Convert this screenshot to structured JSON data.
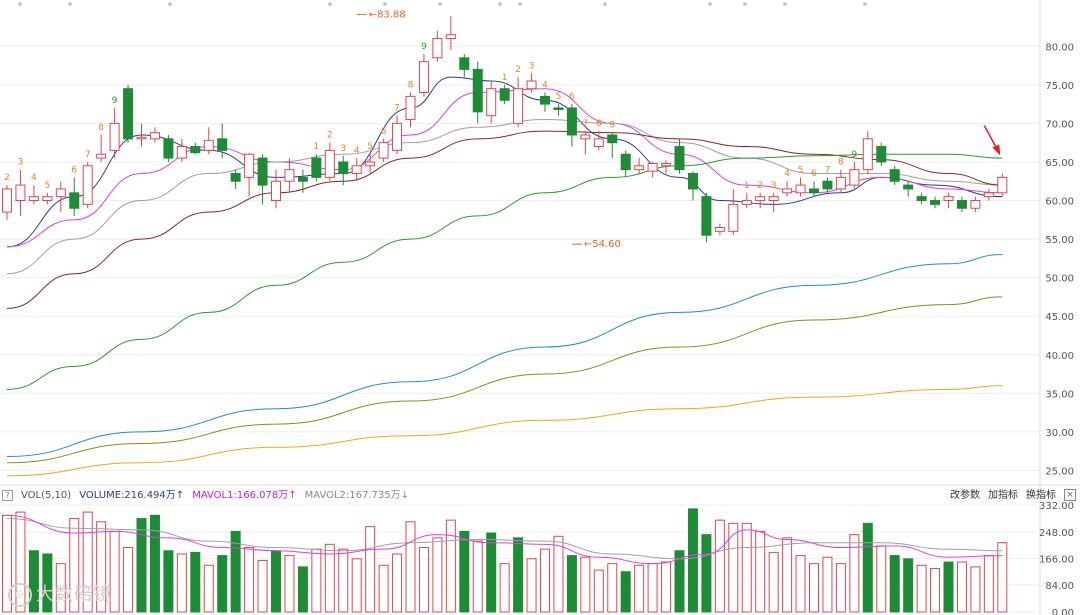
{
  "colors": {
    "up": "#e0474c",
    "down": "#1e8b36",
    "ma5": "#2b3a9a",
    "ma10": "#e040e0",
    "ma20": "#a0a0a0",
    "ma30": "#8b2525",
    "ma60": "#2d9a2d",
    "ma120": "#1f8fd0",
    "ma250": "#8f8a1a",
    "ma500": "#f2a51a",
    "td_up": "#e8841a",
    "td_down": "#2aa02a",
    "annotation": "#e8641a",
    "vol_ma5": "#e040e0",
    "vol_ma10": "#a0a0a0"
  },
  "header": {
    "help_icon": "?",
    "indicator": "VOL(5,10)",
    "volume": "VOLUME:216.494万",
    "volume_arrow": "↑",
    "mavol1": "MAVOL1:166.078万",
    "mavol1_arrow": "↑",
    "mavol2": "MAVOL2:167.735万",
    "mavol2_arrow": "↓",
    "btn_params": "改参数",
    "btn_add": "加指标",
    "btn_switch": "换指标",
    "btn_close": "×"
  },
  "watermark": "大数碚镜",
  "chart_data": {
    "type": "candlestick",
    "price_axis": {
      "ticks": [
        "25.00",
        "30.00",
        "35.00",
        "40.00",
        "45.00",
        "50.00",
        "55.00",
        "60.00",
        "65.00",
        "70.00",
        "75.00",
        "80.00"
      ],
      "range": [
        23.5,
        86
      ]
    },
    "volume_axis": {
      "ticks": [
        "0.00",
        "84.00",
        "166.00",
        "248.00",
        "332.00"
      ],
      "range": [
        0,
        332
      ]
    },
    "annotations": [
      {
        "label": "83.88",
        "type": "high",
        "index": 26,
        "value": 83.88
      },
      {
        "label": "54.60",
        "type": "low",
        "index": 42,
        "value": 54.6
      }
    ],
    "top_markers": [
      "*",
      "*",
      "*",
      "*",
      "*",
      "*",
      "*",
      "*",
      "*",
      "*",
      "*",
      "*",
      "*"
    ],
    "candles": [
      [
        58.5,
        61.5,
        57.5,
        62
      ],
      [
        60,
        62,
        58,
        64
      ],
      [
        60,
        60.5,
        59.5,
        62
      ],
      [
        60,
        60.5,
        59.5,
        61
      ],
      [
        60.5,
        61.5,
        58.5,
        62.5
      ],
      [
        61,
        59,
        58,
        63
      ],
      [
        59.5,
        64.5,
        59,
        65
      ],
      [
        65.5,
        66,
        65,
        68.5
      ],
      [
        66.5,
        70,
        65.5,
        72
      ],
      [
        74.5,
        68,
        67.5,
        75
      ],
      [
        68,
        68.2,
        67,
        70
      ],
      [
        68,
        68.8,
        67.5,
        69.5
      ],
      [
        68,
        65.5,
        65,
        68.5
      ],
      [
        65.5,
        67,
        65,
        68
      ],
      [
        67,
        66.2,
        66,
        67.5
      ],
      [
        66.5,
        67.8,
        66,
        69.5
      ],
      [
        68,
        66.5,
        65.5,
        70
      ],
      [
        63.5,
        62.5,
        61.5,
        64
      ],
      [
        63,
        66,
        60.5,
        66.2
      ],
      [
        65.5,
        62,
        59.5,
        66
      ],
      [
        60,
        62.5,
        59,
        64
      ],
      [
        62.5,
        64,
        61,
        65.5
      ],
      [
        63,
        62.5,
        61,
        64
      ],
      [
        65.5,
        63,
        62.5,
        66
      ],
      [
        63,
        66.5,
        62.5,
        67.5
      ],
      [
        65,
        63.5,
        62,
        65.8
      ],
      [
        63.5,
        64.5,
        62.5,
        65.5
      ],
      [
        64.5,
        65,
        63.5,
        66
      ],
      [
        65.5,
        67.5,
        65,
        68
      ],
      [
        66.5,
        70,
        66,
        71
      ],
      [
        70.5,
        73.5,
        69.5,
        74
      ],
      [
        74,
        78,
        73.5,
        79
      ],
      [
        78.5,
        81,
        78,
        82
      ],
      [
        81,
        81.5,
        79.5,
        83.88
      ],
      [
        78.5,
        77,
        76,
        79
      ],
      [
        77,
        71.5,
        70,
        78
      ],
      [
        71,
        74.5,
        70,
        75.5
      ],
      [
        74.5,
        73,
        72.5,
        75
      ],
      [
        70,
        74.5,
        69.5,
        76
      ],
      [
        74.5,
        75.5,
        74,
        76.5
      ],
      [
        73.5,
        72.5,
        71.5,
        74
      ],
      [
        72,
        71.8,
        71,
        72.5
      ],
      [
        72,
        68.5,
        67,
        72.5
      ],
      [
        68,
        68.5,
        66,
        69
      ],
      [
        67,
        68,
        66.5,
        69
      ],
      [
        68.5,
        67.5,
        65.5,
        68.8
      ],
      [
        66,
        64,
        63,
        66.5
      ],
      [
        64,
        64.5,
        63.5,
        65.5
      ],
      [
        63.8,
        64.8,
        63,
        65
      ],
      [
        64.5,
        64.8,
        63.5,
        65.2
      ],
      [
        67,
        64,
        63.5,
        68
      ],
      [
        63.5,
        61.5,
        60,
        63.8
      ],
      [
        60.5,
        55.5,
        54.6,
        61
      ],
      [
        56,
        56.5,
        55.5,
        57
      ],
      [
        56,
        59.5,
        55.5,
        61.5
      ]
    ],
    "candles_tail": [
      [
        59.5,
        60,
        59,
        61
      ],
      [
        60,
        60.5,
        59,
        61
      ],
      [
        60,
        60.5,
        58.5,
        61
      ],
      [
        61,
        61.5,
        60.5,
        62.5
      ],
      [
        61,
        62,
        60.5,
        63
      ],
      [
        61.5,
        61,
        60.5,
        62.5
      ],
      [
        62.5,
        61.5,
        61,
        63
      ],
      [
        61.5,
        63,
        61,
        64
      ],
      [
        62,
        64,
        61.5,
        65
      ],
      [
        64,
        68,
        63.5,
        69
      ],
      [
        67,
        65,
        64.5,
        67.5
      ],
      [
        64,
        62.5,
        62,
        64.5
      ],
      [
        62,
        61.5,
        60.5,
        62.5
      ],
      [
        60.5,
        60,
        59.5,
        61
      ],
      [
        60,
        59.5,
        59,
        60.5
      ],
      [
        60,
        60.5,
        59,
        61
      ],
      [
        60,
        59,
        58.5,
        60.5
      ],
      [
        59,
        60,
        58.5,
        60.5
      ],
      [
        60.5,
        61,
        60,
        61.5
      ],
      [
        61,
        63,
        60.5,
        63.5
      ]
    ],
    "volumes_up": [
      0,
      1,
      4,
      5,
      6,
      7,
      8,
      9,
      13,
      15,
      18,
      19,
      21,
      23,
      24,
      25,
      26,
      27,
      28,
      29,
      30,
      31,
      32,
      33,
      35,
      37,
      39,
      40,
      41,
      43,
      44,
      45,
      47,
      48,
      49,
      53,
      54,
      55,
      56,
      57,
      58,
      59,
      60,
      61,
      62,
      63,
      65,
      68,
      69,
      71,
      72,
      73,
      74
    ],
    "volumes": [
      300,
      310,
      190,
      180,
      150,
      290,
      310,
      280,
      250,
      200,
      290,
      300,
      190,
      180,
      185,
      145,
      175,
      250,
      200,
      160,
      190,
      175,
      140,
      195,
      210,
      195,
      165,
      265,
      145,
      180,
      280,
      200,
      230,
      285,
      250,
      220,
      245,
      150,
      230,
      165,
      195,
      235,
      175,
      170,
      130,
      150,
      125,
      145,
      150,
      155,
      190,
      320,
      240,
      285,
      275,
      275,
      250,
      185,
      230,
      175,
      150,
      170,
      150,
      240,
      275,
      205,
      175,
      165,
      145,
      135,
      155,
      155,
      140,
      175,
      215
    ],
    "td_labels": [
      {
        "i": 0,
        "t": "2",
        "c": "up"
      },
      {
        "i": 1,
        "t": "3",
        "c": "up"
      },
      {
        "i": 2,
        "t": "4",
        "c": "up"
      },
      {
        "i": 3,
        "t": "5",
        "c": "up"
      },
      {
        "i": 5,
        "t": "6",
        "c": "up"
      },
      {
        "i": 6,
        "t": "7",
        "c": "up"
      },
      {
        "i": 7,
        "t": "8",
        "c": "up"
      },
      {
        "i": 8,
        "t": "9",
        "c": "down"
      },
      {
        "i": 23,
        "t": "1",
        "c": "up"
      },
      {
        "i": 24,
        "t": "2",
        "c": "up"
      },
      {
        "i": 25,
        "t": "3",
        "c": "up"
      },
      {
        "i": 26,
        "t": "4",
        "c": "up"
      },
      {
        "i": 27,
        "t": "5",
        "c": "up"
      },
      {
        "i": 28,
        "t": "6",
        "c": "up"
      },
      {
        "i": 29,
        "t": "7",
        "c": "up"
      },
      {
        "i": 30,
        "t": "8",
        "c": "up"
      },
      {
        "i": 31,
        "t": "9",
        "c": "down"
      },
      {
        "i": 37,
        "t": "1",
        "c": "up"
      },
      {
        "i": 38,
        "t": "2",
        "c": "up"
      },
      {
        "i": 39,
        "t": "3",
        "c": "up"
      },
      {
        "i": 40,
        "t": "4",
        "c": "up"
      },
      {
        "i": 41,
        "t": "5",
        "c": "up"
      },
      {
        "i": 42,
        "t": "6",
        "c": "up"
      },
      {
        "i": 43,
        "t": "7",
        "c": "up"
      },
      {
        "i": 44,
        "t": "8",
        "c": "up"
      },
      {
        "i": 45,
        "t": "9",
        "c": "up"
      },
      {
        "i": 55,
        "t": "1",
        "c": "up"
      },
      {
        "i": 56,
        "t": "2",
        "c": "up"
      },
      {
        "i": 57,
        "t": "3",
        "c": "up"
      },
      {
        "i": 58,
        "t": "4",
        "c": "up"
      },
      {
        "i": 59,
        "t": "5",
        "c": "up"
      },
      {
        "i": 60,
        "t": "6",
        "c": "up"
      },
      {
        "i": 61,
        "t": "7",
        "c": "up"
      },
      {
        "i": 62,
        "t": "8",
        "c": "up"
      },
      {
        "i": 63,
        "t": "9",
        "c": "down"
      }
    ],
    "moving_averages": {
      "ma5": [
        [
          0,
          54
        ],
        [
          5,
          60.5
        ],
        [
          10,
          68.5
        ],
        [
          15,
          66.5
        ],
        [
          20,
          63
        ],
        [
          25,
          63.5
        ],
        [
          30,
          72
        ],
        [
          33,
          76
        ],
        [
          36,
          75.5
        ],
        [
          40,
          73
        ],
        [
          45,
          68
        ],
        [
          50,
          63
        ],
        [
          53,
          60
        ],
        [
          57,
          59.5
        ],
        [
          62,
          61
        ],
        [
          65,
          63
        ],
        [
          69,
          62
        ],
        [
          74,
          60.5
        ]
      ],
      "ma10": [
        [
          0,
          54
        ],
        [
          5,
          57.5
        ],
        [
          10,
          63.5
        ],
        [
          15,
          67
        ],
        [
          20,
          65
        ],
        [
          25,
          64
        ],
        [
          30,
          68.5
        ],
        [
          35,
          74
        ],
        [
          40,
          74.5
        ],
        [
          45,
          70
        ],
        [
          50,
          66
        ],
        [
          55,
          62
        ],
        [
          60,
          61
        ],
        [
          65,
          63
        ],
        [
          70,
          61.5
        ],
        [
          74,
          61
        ]
      ],
      "ma20": [
        [
          0,
          50.5
        ],
        [
          5,
          55
        ],
        [
          10,
          60
        ],
        [
          15,
          63.5
        ],
        [
          20,
          65
        ],
        [
          25,
          66
        ],
        [
          30,
          67.5
        ],
        [
          35,
          69.5
        ],
        [
          40,
          70.5
        ],
        [
          45,
          70
        ],
        [
          50,
          67.5
        ],
        [
          55,
          65.5
        ],
        [
          60,
          63.5
        ],
        [
          65,
          63.5
        ],
        [
          70,
          62.5
        ],
        [
          74,
          62
        ]
      ],
      "ma30": [
        [
          0,
          46
        ],
        [
          5,
          50.5
        ],
        [
          10,
          55
        ],
        [
          15,
          58.5
        ],
        [
          20,
          61
        ],
        [
          25,
          62.5
        ],
        [
          30,
          65.5
        ],
        [
          35,
          68
        ],
        [
          40,
          69
        ],
        [
          45,
          68.8
        ],
        [
          50,
          68
        ],
        [
          55,
          67
        ],
        [
          60,
          66
        ],
        [
          65,
          65.3
        ],
        [
          70,
          63.5
        ],
        [
          74,
          62
        ]
      ],
      "ma60": [
        [
          0,
          35.5
        ],
        [
          5,
          38.5
        ],
        [
          10,
          42
        ],
        [
          15,
          45.5
        ],
        [
          20,
          49
        ],
        [
          25,
          52
        ],
        [
          30,
          55
        ],
        [
          35,
          58
        ],
        [
          40,
          61
        ],
        [
          45,
          63
        ],
        [
          50,
          64.5
        ],
        [
          55,
          65.5
        ],
        [
          60,
          65.8
        ],
        [
          65,
          66
        ],
        [
          70,
          66
        ],
        [
          74,
          65.5
        ]
      ],
      "ma120": [
        [
          0,
          26.8
        ],
        [
          10,
          30
        ],
        [
          20,
          33
        ],
        [
          30,
          36.5
        ],
        [
          40,
          41
        ],
        [
          50,
          45.5
        ],
        [
          60,
          49
        ],
        [
          70,
          51.8
        ],
        [
          74,
          53
        ]
      ],
      "ma250": [
        [
          0,
          26
        ],
        [
          10,
          28.5
        ],
        [
          20,
          31
        ],
        [
          30,
          34
        ],
        [
          40,
          37.5
        ],
        [
          50,
          41
        ],
        [
          60,
          44.5
        ],
        [
          70,
          46.5
        ],
        [
          74,
          47.5
        ]
      ],
      "ma500": [
        [
          0,
          24.3
        ],
        [
          10,
          26
        ],
        [
          20,
          28
        ],
        [
          30,
          29.5
        ],
        [
          40,
          31.5
        ],
        [
          50,
          33
        ],
        [
          60,
          34.5
        ],
        [
          70,
          35.5
        ],
        [
          74,
          36
        ]
      ]
    },
    "volume_ma": {
      "mavol1": [
        [
          0,
          300
        ],
        [
          5,
          245
        ],
        [
          8,
          250
        ],
        [
          12,
          230
        ],
        [
          16,
          200
        ],
        [
          20,
          190
        ],
        [
          24,
          180
        ],
        [
          28,
          195
        ],
        [
          32,
          240
        ],
        [
          36,
          215
        ],
        [
          40,
          210
        ],
        [
          44,
          170
        ],
        [
          48,
          150
        ],
        [
          52,
          180
        ],
        [
          55,
          255
        ],
        [
          58,
          225
        ],
        [
          62,
          200
        ],
        [
          66,
          205
        ],
        [
          70,
          170
        ],
        [
          74,
          175
        ]
      ],
      "mavol2": [
        [
          0,
          290
        ],
        [
          5,
          260
        ],
        [
          10,
          255
        ],
        [
          15,
          220
        ],
        [
          20,
          200
        ],
        [
          25,
          190
        ],
        [
          30,
          215
        ],
        [
          35,
          225
        ],
        [
          40,
          220
        ],
        [
          45,
          180
        ],
        [
          50,
          165
        ],
        [
          55,
          200
        ],
        [
          60,
          215
        ],
        [
          65,
          215
        ],
        [
          70,
          195
        ],
        [
          74,
          190
        ]
      ]
    }
  }
}
